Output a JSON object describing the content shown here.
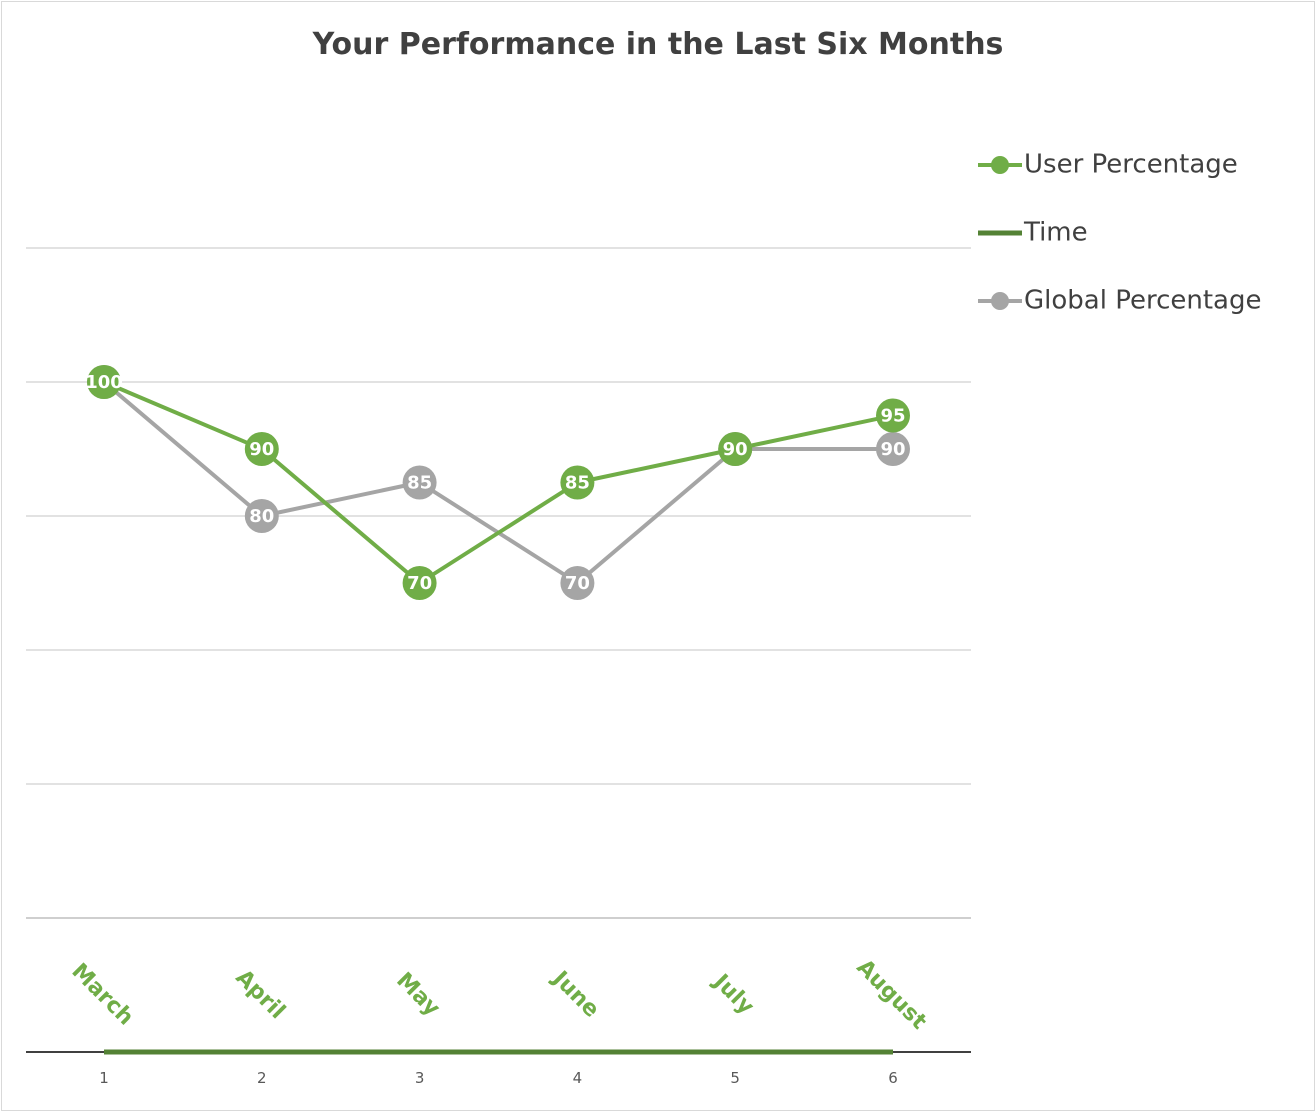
{
  "chart_data": {
    "type": "line",
    "title": "Your Performance in the Last Six Months",
    "x": [
      1,
      2,
      3,
      4,
      5,
      6
    ],
    "x_tick_labels": [
      "1",
      "2",
      "3",
      "4",
      "5",
      "6"
    ],
    "categories": [
      "March",
      "April",
      "May",
      "June",
      "July",
      "August"
    ],
    "ylim": [
      20,
      120
    ],
    "y_gridlines": [
      20,
      40,
      60,
      80,
      100,
      120
    ],
    "grid": true,
    "legend_position": "right",
    "series": [
      {
        "name": "User Percentage",
        "values": [
          100,
          90,
          70,
          85,
          90,
          95
        ],
        "color": "#70ad47",
        "marker": "circle",
        "data_labels": [
          "100",
          "90",
          "70",
          "85",
          "90",
          "95"
        ]
      },
      {
        "name": "Time",
        "values": [
          0,
          0,
          0,
          0,
          0,
          0
        ],
        "color": "#548235",
        "marker": "none",
        "data_labels": [
          "March",
          "April",
          "May",
          "June",
          "July",
          "August"
        ]
      },
      {
        "name": "Global Percentage",
        "values": [
          100,
          80,
          85,
          70,
          90,
          90
        ],
        "color": "#a5a5a5",
        "marker": "circle",
        "data_labels": [
          "100",
          "80",
          "85",
          "70",
          "90",
          "90"
        ]
      }
    ],
    "label_color": "#70ad47",
    "axis_color": "#404040",
    "grid_color": "#d9d9d9"
  }
}
